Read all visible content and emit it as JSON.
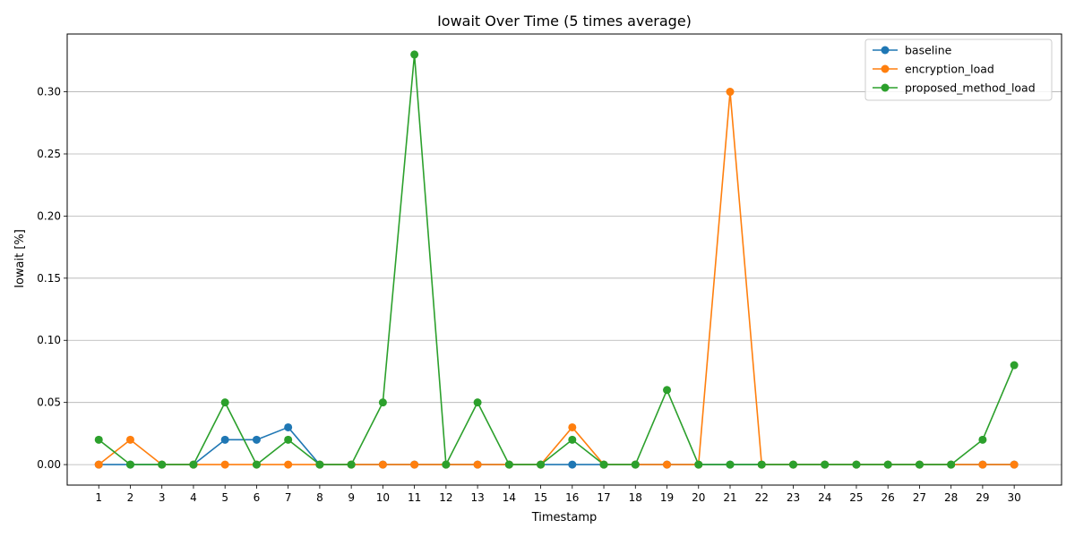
{
  "chart_data": {
    "type": "line",
    "title": "Iowait Over Time (5 times average)",
    "xlabel": "Timestamp",
    "ylabel": "Iowait [%]",
    "x": [
      1,
      2,
      3,
      4,
      5,
      6,
      7,
      8,
      9,
      10,
      11,
      12,
      13,
      14,
      15,
      16,
      17,
      18,
      19,
      20,
      21,
      22,
      23,
      24,
      25,
      26,
      27,
      28,
      29,
      30
    ],
    "xlim": [
      0,
      31.5
    ],
    "ylim": [
      -0.0165,
      0.3465
    ],
    "yticks": [
      0.0,
      0.05,
      0.1,
      0.15,
      0.2,
      0.25,
      0.3
    ],
    "ytick_labels": [
      "0.00",
      "0.05",
      "0.10",
      "0.15",
      "0.20",
      "0.25",
      "0.30"
    ],
    "grid": "horizontal",
    "legend_position": "top-right",
    "series": [
      {
        "name": "baseline",
        "color": "#1f77b4",
        "values": [
          0,
          0,
          0,
          0,
          0.02,
          0.02,
          0.03,
          0,
          0,
          0,
          0,
          0,
          0,
          0,
          0,
          0,
          0,
          0,
          0,
          0,
          0,
          0,
          0,
          0,
          0,
          0,
          0,
          0,
          0,
          0
        ]
      },
      {
        "name": "encryption_load",
        "color": "#ff7f0e",
        "values": [
          0,
          0.02,
          0,
          0,
          0,
          0,
          0,
          0,
          0,
          0,
          0,
          0,
          0,
          0,
          0,
          0.03,
          0,
          0,
          0,
          0,
          0.3,
          0,
          0,
          0,
          0,
          0,
          0,
          0,
          0,
          0
        ]
      },
      {
        "name": "proposed_method_load",
        "color": "#2ca02c",
        "values": [
          0.02,
          0,
          0,
          0,
          0.05,
          0,
          0.02,
          0,
          0,
          0.05,
          0.33,
          0,
          0.05,
          0,
          0,
          0.02,
          0,
          0,
          0.06,
          0,
          0,
          0,
          0,
          0,
          0,
          0,
          0,
          0,
          0.02,
          0.08
        ]
      }
    ]
  }
}
